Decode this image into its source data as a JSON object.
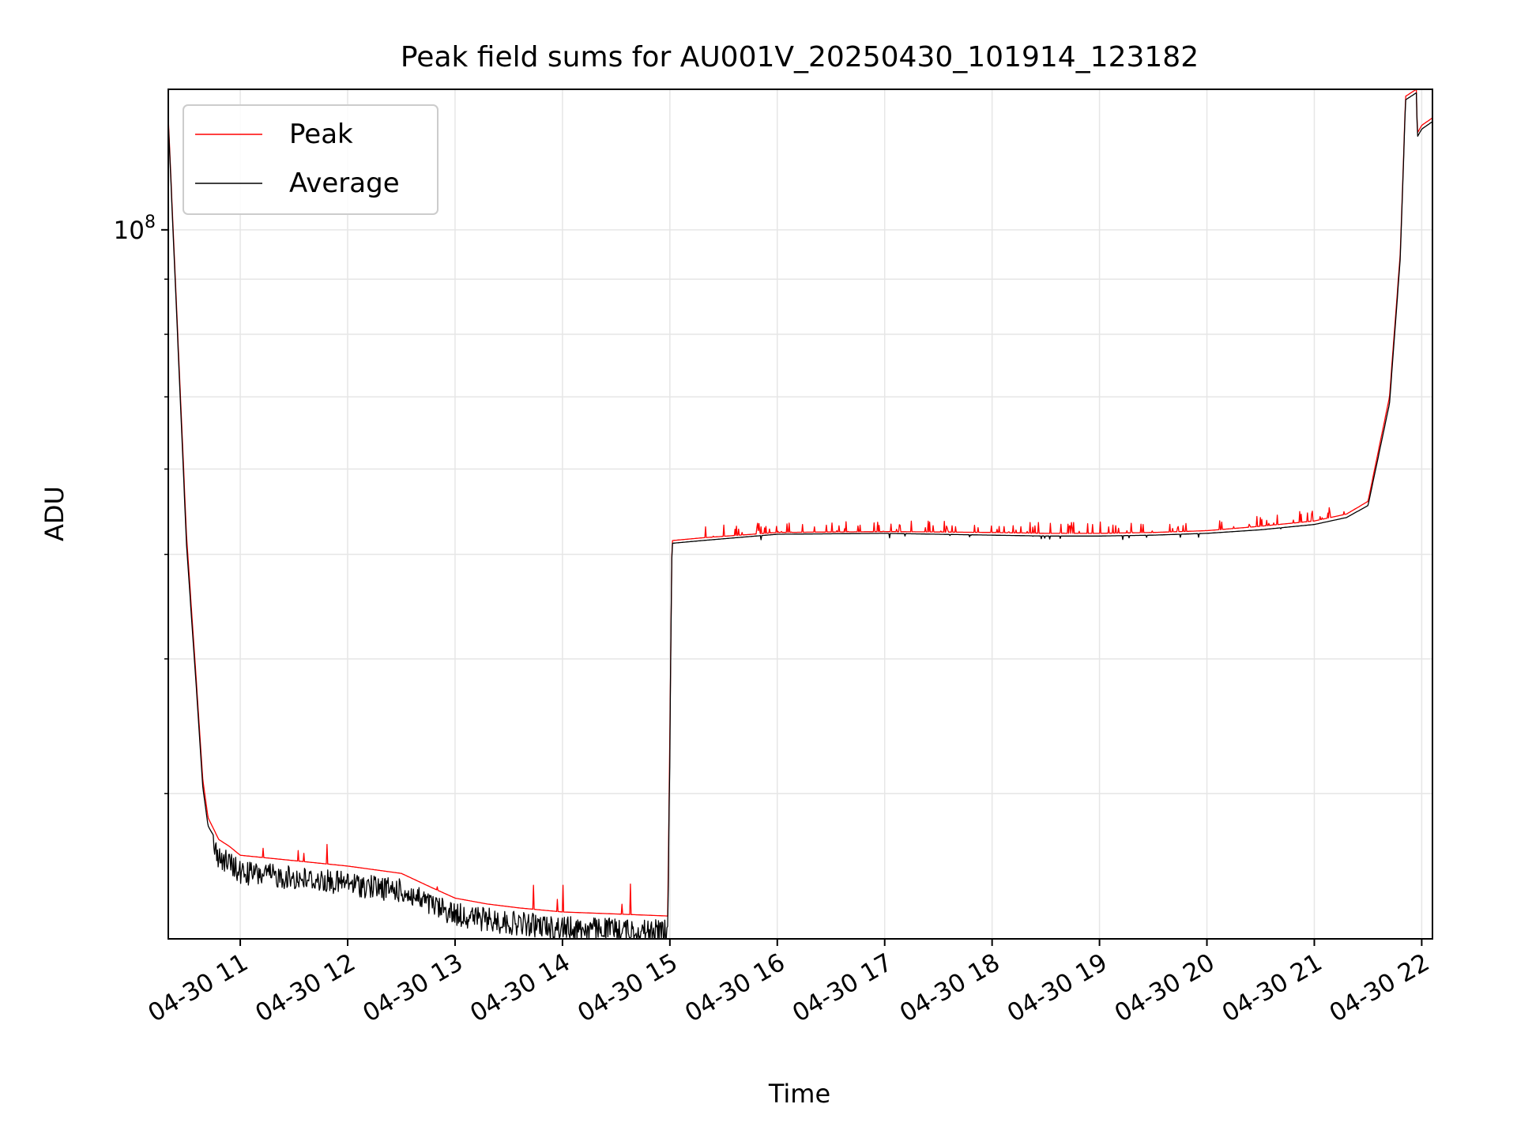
{
  "chart_data": {
    "type": "line",
    "title": "Peak field sums for AU001V_20250430_101914_123182",
    "xlabel": "Time",
    "ylabel": "ADU",
    "x_ticks": [
      "04-30 11",
      "04-30 12",
      "04-30 13",
      "04-30 14",
      "04-30 15",
      "04-30 16",
      "04-30 17",
      "04-30 18",
      "04-30 19",
      "04-30 20",
      "04-30 21",
      "04-30 22"
    ],
    "x_tick_hours": [
      11,
      12,
      13,
      14,
      15,
      16,
      17,
      18,
      19,
      20,
      21,
      22
    ],
    "x_range_hours": [
      10.33,
      22.1
    ],
    "y_scale": "log",
    "y_range": [
      22000000,
      135000000
    ],
    "y_major_ticks": [
      {
        "value": 100000000,
        "base": "10",
        "exp": "8"
      }
    ],
    "y_minor_ticks": [
      30000000,
      40000000,
      50000000,
      60000000,
      70000000,
      80000000,
      90000000
    ],
    "grid": true,
    "legend_position": "upper left",
    "series": [
      {
        "name": "Peak",
        "color": "#ff0000",
        "x_hours": [
          10.33,
          10.4,
          10.5,
          10.6,
          10.65,
          10.7,
          10.8,
          10.9,
          11.0,
          11.5,
          12.0,
          12.5,
          12.8,
          13.0,
          13.3,
          13.6,
          13.8,
          14.0,
          14.5,
          14.98,
          15.02,
          15.3,
          16.0,
          17.0,
          18.0,
          18.5,
          19.0,
          19.5,
          20.0,
          20.5,
          21.0,
          21.3,
          21.5,
          21.7,
          21.8,
          21.85,
          21.95,
          21.96,
          22.0,
          22.1
        ],
        "y": [
          127000000,
          88000000,
          52000000,
          37000000,
          31000000,
          28500000,
          27200000,
          26800000,
          26300000,
          26000000,
          25700000,
          25300000,
          24500000,
          24000000,
          23700000,
          23500000,
          23400000,
          23300000,
          23200000,
          23100000,
          51500000,
          51800000,
          52400000,
          52500000,
          52400000,
          52300000,
          52300000,
          52400000,
          52600000,
          53100000,
          53700000,
          54500000,
          56000000,
          70000000,
          95000000,
          133000000,
          135000000,
          123000000,
          125000000,
          127000000
        ]
      },
      {
        "name": "Average",
        "color": "#000000",
        "x_hours": [
          10.33,
          10.4,
          10.5,
          10.6,
          10.65,
          10.7,
          10.8,
          10.9,
          11.0,
          11.5,
          12.0,
          12.5,
          12.8,
          13.0,
          13.3,
          13.6,
          13.8,
          14.0,
          14.5,
          14.98,
          15.02,
          15.3,
          16.0,
          17.0,
          18.0,
          18.5,
          19.0,
          19.5,
          20.0,
          20.5,
          21.0,
          21.3,
          21.5,
          21.7,
          21.8,
          21.85,
          21.95,
          21.96,
          22.0,
          22.1
        ],
        "y": [
          126000000,
          87000000,
          51000000,
          36500000,
          30500000,
          28000000,
          26900000,
          26500000,
          26000000,
          25700000,
          25400000,
          25000000,
          24200000,
          23800000,
          23500000,
          23300000,
          23200000,
          23100000,
          23000000,
          22900000,
          51200000,
          51500000,
          52200000,
          52300000,
          52100000,
          52000000,
          52000000,
          52100000,
          52300000,
          52700000,
          53300000,
          54100000,
          55500000,
          69000000,
          94000000,
          132000000,
          134000000,
          122000000,
          124000000,
          126000000
        ]
      }
    ]
  }
}
